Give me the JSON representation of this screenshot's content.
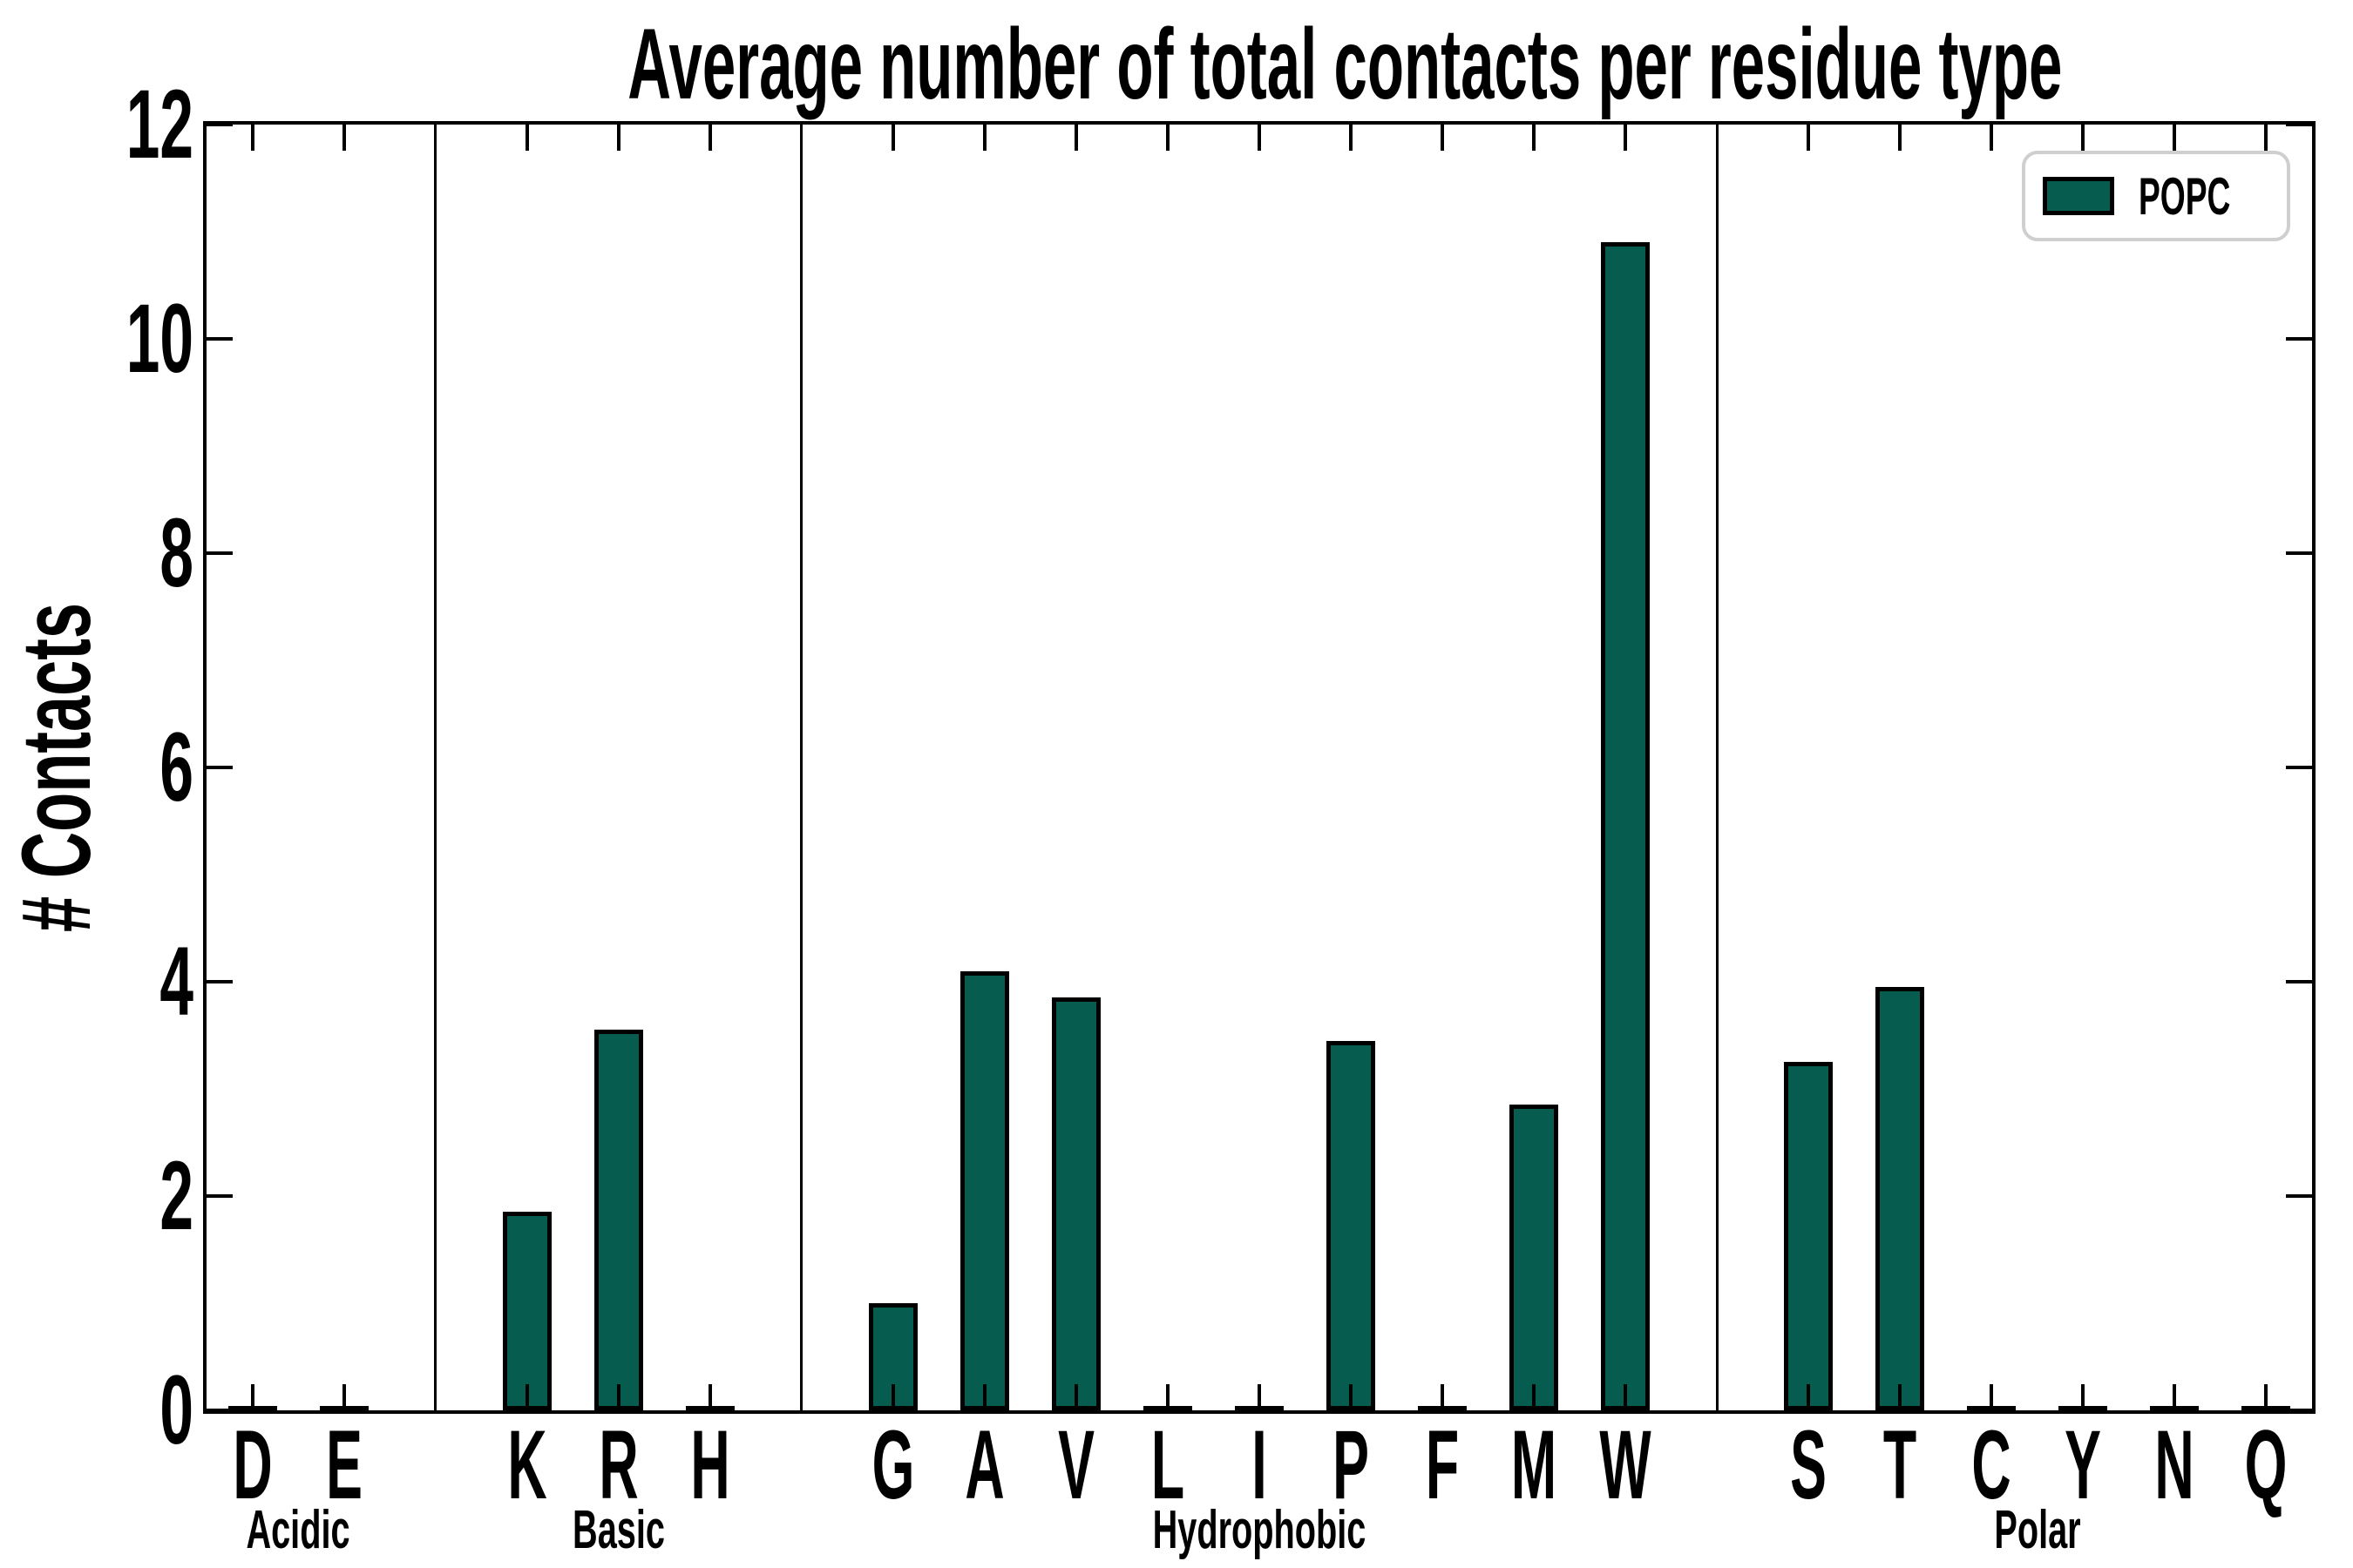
{
  "title": "Average number of total contacts per residue type",
  "ylabel": "# Contacts",
  "legend": {
    "label": "POPC"
  },
  "colors": {
    "bar_fill": "#075C50",
    "bar_edge": "#000000",
    "axis": "#000000",
    "legend_border": "#cfcfcf",
    "background": "#ffffff"
  },
  "chart_data": {
    "type": "bar",
    "title": "Average number of total contacts per residue type",
    "xlabel": "",
    "ylabel": "# Contacts",
    "ylim": [
      0,
      12
    ],
    "yticks": [
      0,
      2,
      4,
      6,
      8,
      10,
      12
    ],
    "grid": false,
    "legend_entries": [
      "POPC"
    ],
    "legend_position": "upper right",
    "series_name": "POPC",
    "groups": [
      {
        "label": "Acidic",
        "categories": [
          "D",
          "E"
        ],
        "values": [
          0.02,
          0.02
        ]
      },
      {
        "label": "Basic",
        "categories": [
          "K",
          "R",
          "H"
        ],
        "values": [
          1.85,
          3.55,
          0.03
        ]
      },
      {
        "label": "Hydrophobic",
        "categories": [
          "G",
          "A",
          "V",
          "L",
          "I",
          "P",
          "F",
          "M",
          "W"
        ],
        "values": [
          1.0,
          4.1,
          3.85,
          0.03,
          0.03,
          3.45,
          0.03,
          2.85,
          10.9
        ]
      },
      {
        "label": "Polar",
        "categories": [
          "S",
          "T",
          "C",
          "Y",
          "N",
          "Q"
        ],
        "values": [
          3.25,
          3.95,
          0.03,
          0.03,
          0.02,
          0.02
        ]
      }
    ]
  }
}
